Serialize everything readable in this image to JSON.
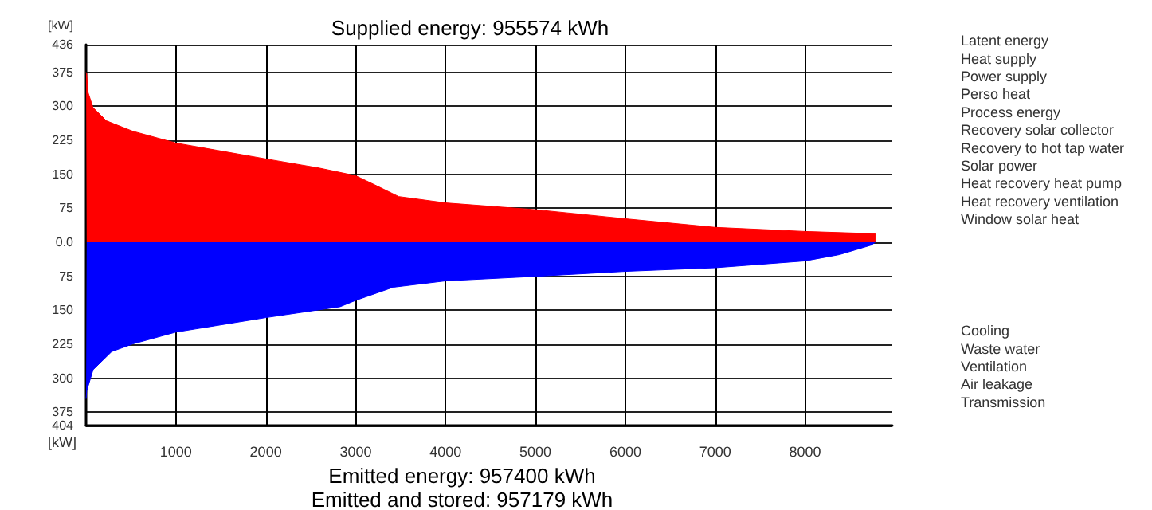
{
  "chart_data": {
    "type": "area",
    "title": "Supplied energy: 955574 kWh",
    "ylabel": "[kW]",
    "annotations": [
      "Latent energy\nHeat supply\nPower supply\nPerso heat\nProcess energy\nRecovery solar collector\nRecovery to hot tap water\nSolar power\nHeat recovery heat pump\nHeat recovery ventilation\nWindow solar heat",
      "Cooling\nWaste water\nVentilation\nAir leakage\nTransmission",
      "[kW]",
      "Emitted energy: 957400 kWh\nEmitted and stored: 957179 kWh"
    ],
    "series": [
      {
        "color": "#ff0000",
        "x": [
          0,
          7,
          20,
          78,
          227,
          521,
          1000,
          2000,
          2590,
          3000,
          3241,
          3478,
          4000,
          5000,
          6000,
          7000,
          8000,
          8780,
          8781
        ],
        "values": [
          375,
          372,
          332,
          297,
          268,
          245,
          219,
          184,
          164,
          147,
          124,
          101,
          87,
          72,
          52,
          33,
          24,
          19,
          0
        ]
      },
      {
        "color": "#0000ff",
        "x": [
          0,
          7,
          78,
          285,
          521,
          1000,
          2000,
          2826,
          3000,
          3418,
          4000,
          5000,
          6000,
          7000,
          8000,
          8383,
          8738,
          8780
        ],
        "values": [
          -345,
          -328,
          -281,
          -241,
          -224,
          -198,
          -166,
          -142,
          -128,
          -99,
          -85,
          -75,
          -64,
          -56,
          -41,
          -27,
          -6,
          0
        ]
      }
    ],
    "xlim": [
      0,
      8970
    ],
    "xticks": [
      1000,
      2000,
      3000,
      4000,
      5000,
      6000,
      7000,
      8000
    ],
    "ylim": [
      -404,
      436
    ],
    "yticks": [
      436,
      375,
      300,
      225,
      150,
      75,
      {
        "value": 0,
        "label": "0.0"
      },
      {
        "value": -75,
        "label": "75"
      },
      {
        "value": -150,
        "label": "150"
      },
      {
        "value": -225,
        "label": "225"
      },
      {
        "value": -300,
        "label": "300"
      },
      {
        "value": -375,
        "label": "375"
      },
      {
        "value": -404,
        "label": "404"
      }
    ],
    "grid": true
  }
}
